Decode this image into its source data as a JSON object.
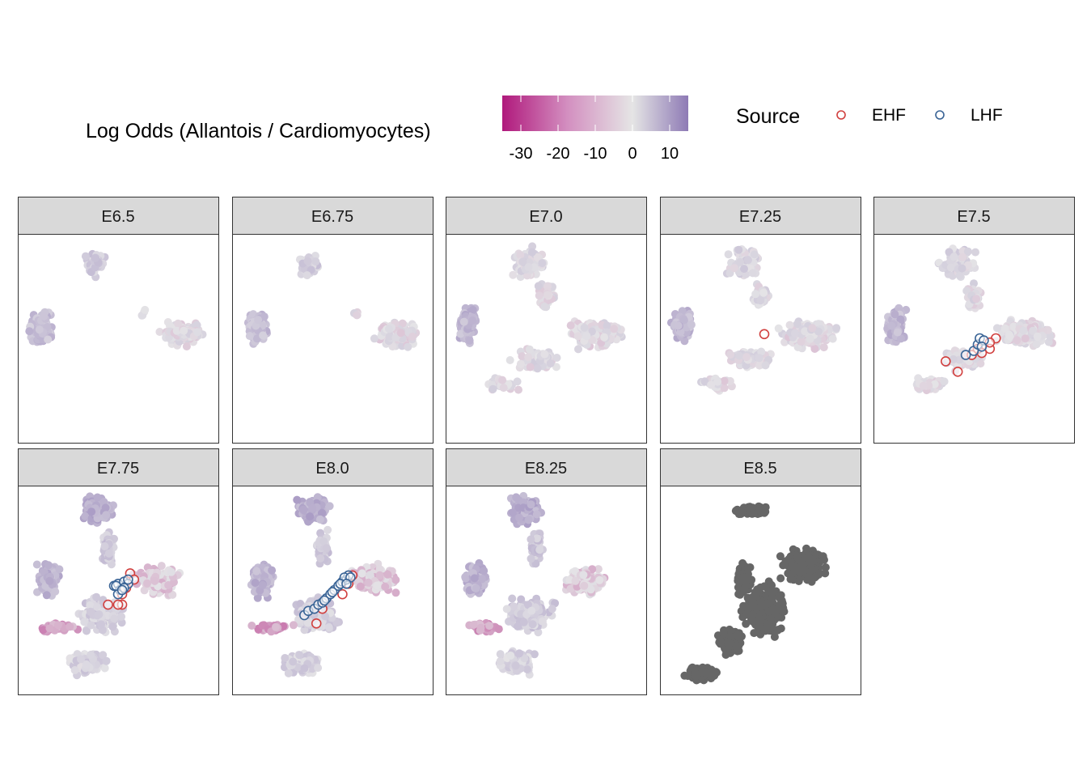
{
  "chart_data": {
    "type": "scatter",
    "title": "",
    "xlabel": "",
    "ylabel": "",
    "grid": false,
    "legend_placement": "top",
    "color_legend": {
      "title": "Log Odds (Allantois / Cardiomyocytes)",
      "ticks": [
        -30,
        -20,
        -10,
        0,
        10
      ],
      "tick_labels": [
        "-30",
        "-20",
        "-10",
        "0",
        "10"
      ],
      "range": [
        -35,
        15
      ],
      "low_color": "#b0197c",
      "mid_color": "#e5e5e5",
      "high_color": "#8e7ab5"
    },
    "shape_legend": {
      "title": "Source",
      "items": [
        {
          "label": "EHF",
          "color": "#d1403f"
        },
        {
          "label": "LHF",
          "color": "#3a6496"
        }
      ]
    },
    "panels": [
      {
        "label": "E6.5",
        "na_grey": false,
        "ehf": [],
        "lhf": []
      },
      {
        "label": "E6.75",
        "na_grey": false,
        "ehf": [],
        "lhf": []
      },
      {
        "label": "E7.0",
        "na_grey": false,
        "ehf": [],
        "lhf": []
      },
      {
        "label": "E7.25",
        "na_grey": false,
        "ehf": [
          [
            0.52,
            0.48
          ]
        ],
        "lhf": []
      },
      {
        "label": "E7.5",
        "na_grey": false,
        "ehf": [
          [
            0.36,
            0.61
          ],
          [
            0.42,
            0.66
          ],
          [
            0.49,
            0.58
          ],
          [
            0.52,
            0.55
          ],
          [
            0.58,
            0.55
          ],
          [
            0.61,
            0.5
          ],
          [
            0.58,
            0.52
          ],
          [
            0.54,
            0.57
          ]
        ],
        "lhf": [
          [
            0.46,
            0.58
          ],
          [
            0.5,
            0.56
          ],
          [
            0.52,
            0.53
          ],
          [
            0.53,
            0.5
          ],
          [
            0.55,
            0.51
          ],
          [
            0.54,
            0.54
          ]
        ]
      },
      {
        "label": "E7.75",
        "na_grey": false,
        "ehf": [
          [
            0.56,
            0.42
          ],
          [
            0.58,
            0.45
          ],
          [
            0.54,
            0.49
          ],
          [
            0.52,
            0.57
          ],
          [
            0.5,
            0.57
          ],
          [
            0.45,
            0.57
          ],
          [
            0.52,
            0.52
          ]
        ],
        "lhf": [
          [
            0.48,
            0.48
          ],
          [
            0.5,
            0.47
          ],
          [
            0.53,
            0.46
          ],
          [
            0.55,
            0.47
          ],
          [
            0.51,
            0.5
          ],
          [
            0.5,
            0.52
          ],
          [
            0.53,
            0.49
          ],
          [
            0.55,
            0.45
          ],
          [
            0.49,
            0.48
          ],
          [
            0.52,
            0.5
          ]
        ]
      },
      {
        "label": "E8.0",
        "na_grey": false,
        "ehf": [
          [
            0.58,
            0.47
          ],
          [
            0.6,
            0.43
          ],
          [
            0.55,
            0.52
          ],
          [
            0.45,
            0.59
          ],
          [
            0.42,
            0.66
          ]
        ],
        "lhf": [
          [
            0.36,
            0.62
          ],
          [
            0.38,
            0.6
          ],
          [
            0.41,
            0.59
          ],
          [
            0.43,
            0.57
          ],
          [
            0.45,
            0.56
          ],
          [
            0.47,
            0.54
          ],
          [
            0.49,
            0.52
          ],
          [
            0.51,
            0.5
          ],
          [
            0.53,
            0.48
          ],
          [
            0.55,
            0.46
          ],
          [
            0.57,
            0.45
          ],
          [
            0.58,
            0.43
          ],
          [
            0.56,
            0.44
          ],
          [
            0.54,
            0.47
          ],
          [
            0.5,
            0.51
          ],
          [
            0.46,
            0.55
          ],
          [
            0.59,
            0.44
          ],
          [
            0.57,
            0.47
          ]
        ]
      },
      {
        "label": "E8.25",
        "na_grey": false,
        "ehf": [],
        "lhf": []
      },
      {
        "label": "E8.5",
        "na_grey": true,
        "ehf": [],
        "lhf": []
      }
    ]
  }
}
